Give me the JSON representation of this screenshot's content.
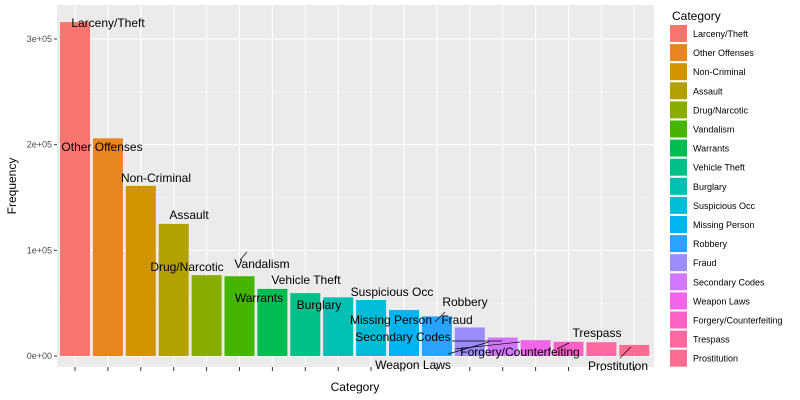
{
  "chart_data": {
    "type": "bar",
    "xlabel": "Category",
    "ylabel": "Frequency",
    "ylim": [
      0,
      330000
    ],
    "y_ticks": [
      {
        "value": 0,
        "label": "0e+00"
      },
      {
        "value": 100000,
        "label": "1e+05"
      },
      {
        "value": 200000,
        "label": "2e+05"
      },
      {
        "value": 300000,
        "label": "3e+05"
      }
    ],
    "legend_title": "Category",
    "legend_position": "right",
    "grid": true,
    "categories": [
      "Larceny/Theft",
      "Other Offenses",
      "Non-Criminal",
      "Assault",
      "Drug/Narcotic",
      "Vandalism",
      "Warrants",
      "Vehicle Theft",
      "Burglary",
      "Suspicious Occ",
      "Missing Person",
      "Robbery",
      "Fraud",
      "Secondary Codes",
      "Weapon Laws",
      "Forgery/Counterfeiting",
      "Trespass",
      "Prostitution"
    ],
    "values": [
      316000,
      206000,
      161000,
      125000,
      76500,
      75500,
      63500,
      59500,
      55500,
      53000,
      43500,
      37500,
      27000,
      17500,
      15000,
      13500,
      13000,
      10500
    ],
    "colors": [
      "#F8766D",
      "#E7851E",
      "#D09400",
      "#B2A100",
      "#89AC00",
      "#45B500",
      "#00BC51",
      "#00C087",
      "#00C0B2",
      "#00BCD6",
      "#00B3F2",
      "#29A3FF",
      "#9C8DFF",
      "#D277FF",
      "#F166E8",
      "#FF61C7",
      "#FF68A0",
      "#FF6C91"
    ]
  },
  "data_labels": [
    {
      "text": "Larceny/Theft"
    },
    {
      "text": "Other Offenses"
    },
    {
      "text": "Non-Criminal"
    },
    {
      "text": "Assault"
    },
    {
      "text": "Drug/Narcotic"
    },
    {
      "text": "Vandalism"
    },
    {
      "text": "Warrants"
    },
    {
      "text": "Vehicle Theft"
    },
    {
      "text": "Burglary"
    },
    {
      "text": "Suspicious Occ"
    },
    {
      "text": "Missing Person"
    },
    {
      "text": "Robbery"
    },
    {
      "text": "Fraud"
    },
    {
      "text": "Secondary Codes"
    },
    {
      "text": "Weapon Laws"
    },
    {
      "text": "Forgery/Counterfeiting"
    },
    {
      "text": "Trespass"
    },
    {
      "text": "Prostitution"
    }
  ]
}
